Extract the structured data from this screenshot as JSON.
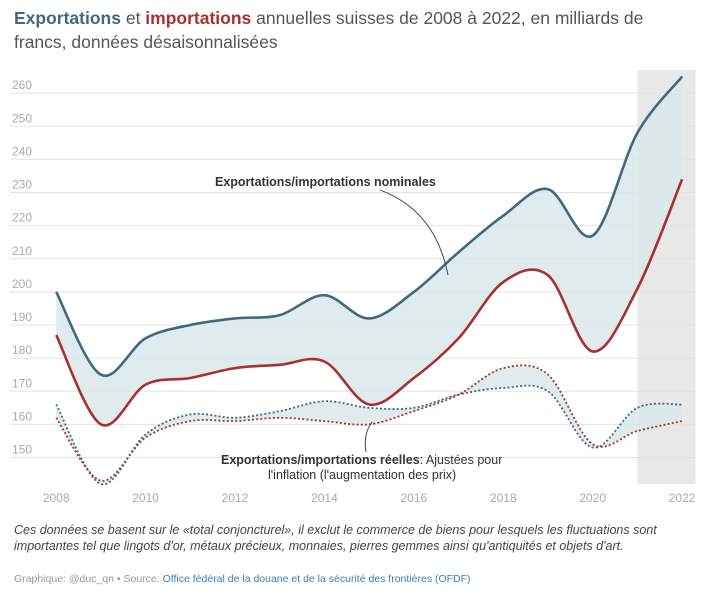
{
  "title": {
    "exports_word": "Exportations",
    "connector": " et ",
    "imports_word": "importations",
    "rest_line1": " annuelles suisses de 2008 à 2022, en milliards de",
    "line2": "francs, données désaisonnalisées"
  },
  "chart_data": {
    "type": "line",
    "x": [
      2008,
      2009,
      2010,
      2011,
      2012,
      2013,
      2014,
      2015,
      2016,
      2017,
      2018,
      2019,
      2020,
      2021,
      2022
    ],
    "xticks": [
      2008,
      2010,
      2012,
      2014,
      2016,
      2018,
      2020,
      2022
    ],
    "yticks": [
      150,
      160,
      170,
      180,
      190,
      200,
      210,
      220,
      230,
      240,
      250,
      260
    ],
    "ylim": [
      142,
      267
    ],
    "xlim": [
      2007.75,
      2022.4
    ],
    "highlight_x": [
      2021,
      2022.3
    ],
    "grid": true,
    "series": [
      {
        "name": "Exportations",
        "kind": "nominal",
        "color": "#3f6a7d",
        "values": [
          200,
          175,
          186,
          190,
          192,
          193,
          199,
          192,
          200,
          212,
          223,
          231,
          217,
          248,
          265
        ]
      },
      {
        "name": "Importations",
        "kind": "nominal",
        "color": "#a8312e",
        "values": [
          187,
          160,
          172,
          174,
          177,
          178,
          179,
          166,
          174,
          186,
          203,
          205,
          182,
          201,
          234
        ]
      },
      {
        "name": "Exportations",
        "kind": "reelle",
        "color": "#3f6a7d",
        "values": [
          166,
          142,
          157,
          163,
          162,
          164,
          167,
          165,
          165,
          169,
          171,
          170,
          153,
          165,
          166
        ]
      },
      {
        "name": "Importations",
        "kind": "reelle",
        "color": "#a8312e",
        "values": [
          162,
          143,
          156,
          161,
          161,
          162,
          161,
          160,
          164,
          169,
          177,
          175,
          154,
          158,
          161
        ]
      }
    ],
    "annotations": {
      "nominal_label": "Exportations/importations nominales",
      "real_label_bold": "Exportations/importations réelles",
      "real_label_rest": ": Ajustées pour",
      "real_label_line2": "l'inflation (l'augmentation des prix)"
    }
  },
  "footer": {
    "note": "Ces données se basent sur le «total conjoncturel», il exclut le commerce de biens pour lesquels les fluctuations sont importantes tel que lingots d'or, métaux précieux, monnaies, pierres gemmes ainsi qu'antiquités et objets d'art.",
    "credit_prefix": "Graphique: @duc_qn • Source: ",
    "credit_source": "Office fédéral de la douane et de la sécurité des frontières (OFDF)"
  },
  "colors": {
    "exports": "#3f6a7d",
    "imports": "#a8312e",
    "band": "#d9e8ea",
    "highlight": "#e8e8e8"
  }
}
